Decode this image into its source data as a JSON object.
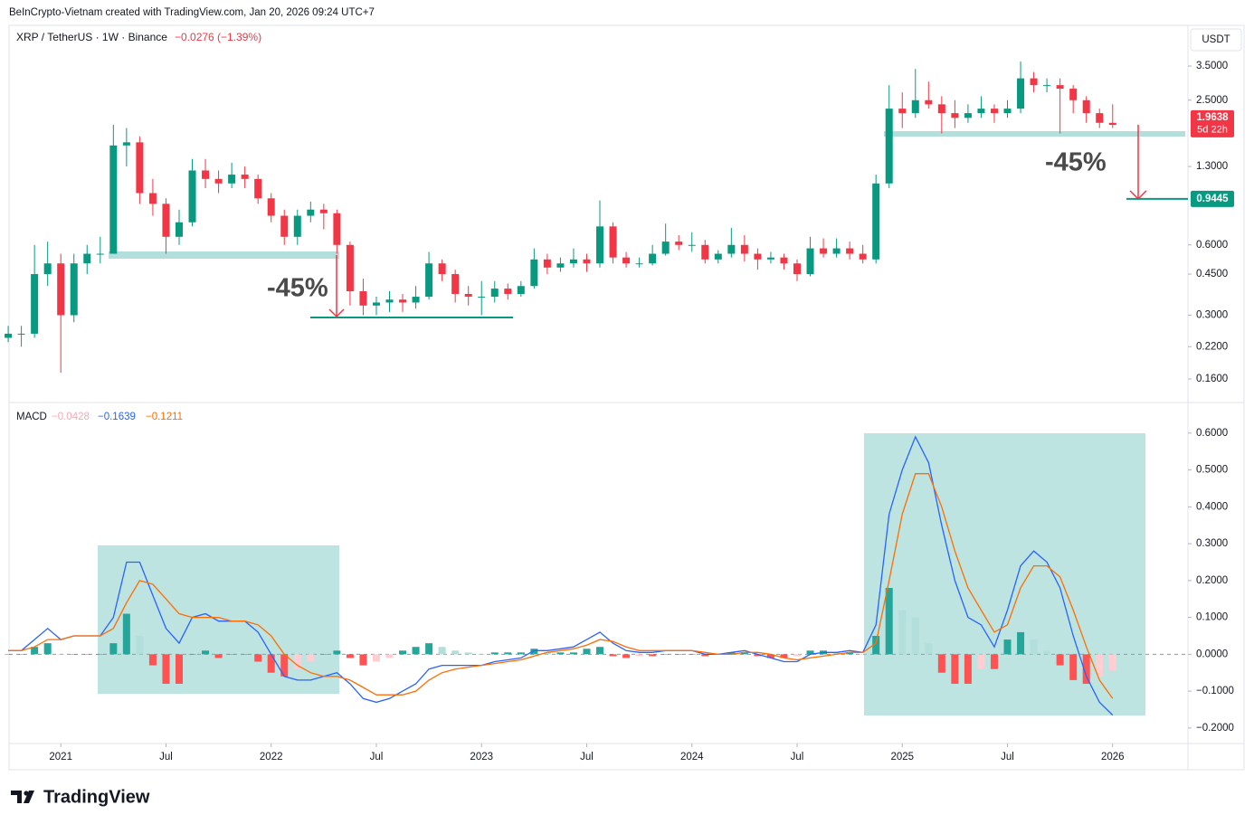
{
  "header": "BeInCrypto-Vietnam created with TradingView.com, Jan 20, 2026 09:24 UTC+7",
  "logo": "TradingView",
  "chart_data": [
    {
      "type": "candlestick",
      "title": "XRP / TetherUS · 1W · Binance",
      "change": "−0.0276 (−1.39%)",
      "currency": "USDT",
      "log_scale": true,
      "up_color": "#089981",
      "down_color": "#f23645",
      "xlim": [
        2020.754,
        2026.358
      ],
      "xticks": [
        2021,
        {
          "value": 2021.5,
          "label": "Jul"
        },
        2022,
        {
          "value": 2022.5,
          "label": "Jul"
        },
        2023,
        {
          "value": 2023.5,
          "label": "Jul"
        },
        2024,
        {
          "value": 2024.5,
          "label": "Jul"
        },
        2025,
        {
          "value": 2025.5,
          "label": "Jul"
        },
        2026
      ],
      "ylim": [
        0.128,
        5.23
      ],
      "yticks": [
        {
          "value": 3.5,
          "label": "3.5000"
        },
        {
          "value": 2.5,
          "label": "2.5000"
        },
        {
          "value": 1.3,
          "label": "1.3000"
        },
        {
          "value": 0.6,
          "label": "0.6000"
        },
        {
          "value": 0.45,
          "label": "0.4500"
        },
        {
          "value": 0.3,
          "label": "0.3000"
        },
        {
          "value": 0.22,
          "label": "0.2200"
        },
        {
          "value": 0.16,
          "label": "0.1600"
        }
      ],
      "last_price": 1.9638,
      "countdown": "5d 22h",
      "target_price": 0.9445,
      "annotations": [
        "-45%",
        "-45%"
      ],
      "x": [
        2020.75,
        2020.8125,
        2020.875,
        2020.9375,
        2021,
        2021.0625,
        2021.125,
        2021.1875,
        2021.25,
        2021.3125,
        2021.375,
        2021.4375,
        2021.5,
        2021.5625,
        2021.625,
        2021.6875,
        2021.75,
        2021.8125,
        2021.875,
        2021.9375,
        2022,
        2022.0625,
        2022.125,
        2022.1875,
        2022.25,
        2022.3125,
        2022.375,
        2022.4375,
        2022.5,
        2022.5625,
        2022.625,
        2022.6875,
        2022.75,
        2022.8125,
        2022.875,
        2022.9375,
        2023,
        2023.0625,
        2023.125,
        2023.1875,
        2023.25,
        2023.3125,
        2023.375,
        2023.4375,
        2023.5,
        2023.5625,
        2023.625,
        2023.6875,
        2023.75,
        2023.8125,
        2023.875,
        2023.9375,
        2024,
        2024.0625,
        2024.125,
        2024.1875,
        2024.25,
        2024.3125,
        2024.375,
        2024.4375,
        2024.5,
        2024.5625,
        2024.625,
        2024.6875,
        2024.75,
        2024.8125,
        2024.875,
        2024.9375,
        2025,
        2025.0625,
        2025.125,
        2025.1875,
        2025.25,
        2025.3125,
        2025.375,
        2025.4375,
        2025.5,
        2025.5625,
        2025.625,
        2025.6875,
        2025.75,
        2025.8125,
        2025.875,
        2025.9375,
        2026
      ],
      "open": [
        0.24,
        0.25,
        0.25,
        0.45,
        0.5,
        0.3,
        0.5,
        0.55,
        0.55,
        1.6,
        1.65,
        1.0,
        0.9,
        0.65,
        0.75,
        1.25,
        1.15,
        1.1,
        1.2,
        1.15,
        0.95,
        0.8,
        0.65,
        0.8,
        0.85,
        0.82,
        0.6,
        0.38,
        0.33,
        0.34,
        0.35,
        0.34,
        0.36,
        0.5,
        0.45,
        0.37,
        0.36,
        0.36,
        0.39,
        0.37,
        0.4,
        0.52,
        0.48,
        0.5,
        0.52,
        0.5,
        0.72,
        0.53,
        0.5,
        0.5,
        0.55,
        0.62,
        0.6,
        0.6,
        0.52,
        0.55,
        0.6,
        0.55,
        0.52,
        0.53,
        0.5,
        0.45,
        0.58,
        0.55,
        0.58,
        0.55,
        0.52,
        1.1,
        2.3,
        2.2,
        2.5,
        2.4,
        2.2,
        2.1,
        2.2,
        2.3,
        2.2,
        2.3,
        3.1,
        2.9,
        2.9,
        2.8,
        2.5,
        2.2,
        2.0
      ],
      "high": [
        0.27,
        0.27,
        0.6,
        0.62,
        0.55,
        0.55,
        0.6,
        0.65,
        1.96,
        1.9,
        1.75,
        1.15,
        0.95,
        0.85,
        1.4,
        1.4,
        1.25,
        1.35,
        1.3,
        1.2,
        1.0,
        0.85,
        0.85,
        0.92,
        0.9,
        0.85,
        0.62,
        0.43,
        0.36,
        0.38,
        0.37,
        0.4,
        0.56,
        0.52,
        0.47,
        0.4,
        0.42,
        0.42,
        0.41,
        0.42,
        0.58,
        0.55,
        0.53,
        0.58,
        0.55,
        0.93,
        0.75,
        0.56,
        0.53,
        0.6,
        0.74,
        0.66,
        0.68,
        0.63,
        0.57,
        0.71,
        0.66,
        0.58,
        0.56,
        0.55,
        0.52,
        0.65,
        0.64,
        0.64,
        0.62,
        0.6,
        1.2,
        2.9,
        2.7,
        3.4,
        3.0,
        2.6,
        2.5,
        2.4,
        2.6,
        2.4,
        2.5,
        3.66,
        3.3,
        3.1,
        3.1,
        2.9,
        2.6,
        2.3,
        2.4
      ],
      "low": [
        0.23,
        0.22,
        0.24,
        0.4,
        0.17,
        0.28,
        0.45,
        0.5,
        0.55,
        1.3,
        0.9,
        0.8,
        0.55,
        0.6,
        0.72,
        1.05,
        1.0,
        1.05,
        1.05,
        0.9,
        0.75,
        0.6,
        0.6,
        0.75,
        0.7,
        0.55,
        0.33,
        0.3,
        0.3,
        0.31,
        0.31,
        0.32,
        0.35,
        0.42,
        0.34,
        0.33,
        0.3,
        0.34,
        0.35,
        0.36,
        0.39,
        0.45,
        0.46,
        0.48,
        0.46,
        0.48,
        0.5,
        0.48,
        0.48,
        0.49,
        0.54,
        0.57,
        0.56,
        0.5,
        0.5,
        0.53,
        0.51,
        0.47,
        0.5,
        0.47,
        0.42,
        0.44,
        0.53,
        0.53,
        0.52,
        0.5,
        0.5,
        1.05,
        1.9,
        2.1,
        2.3,
        1.8,
        1.9,
        2.0,
        2.1,
        2.0,
        2.1,
        2.2,
        2.7,
        2.7,
        1.8,
        2.2,
        2.0,
        1.9,
        1.9
      ],
      "close": [
        0.25,
        0.25,
        0.45,
        0.5,
        0.3,
        0.5,
        0.55,
        0.55,
        1.6,
        1.65,
        1.0,
        0.9,
        0.65,
        0.75,
        1.25,
        1.15,
        1.1,
        1.2,
        1.15,
        0.95,
        0.8,
        0.65,
        0.8,
        0.85,
        0.82,
        0.6,
        0.38,
        0.33,
        0.34,
        0.35,
        0.34,
        0.36,
        0.5,
        0.45,
        0.37,
        0.36,
        0.36,
        0.39,
        0.37,
        0.4,
        0.52,
        0.48,
        0.5,
        0.52,
        0.5,
        0.72,
        0.53,
        0.5,
        0.5,
        0.55,
        0.62,
        0.6,
        0.6,
        0.52,
        0.55,
        0.6,
        0.55,
        0.52,
        0.53,
        0.5,
        0.45,
        0.58,
        0.55,
        0.58,
        0.55,
        0.52,
        1.1,
        2.3,
        2.2,
        2.5,
        2.4,
        2.2,
        2.1,
        2.2,
        2.3,
        2.2,
        2.3,
        3.1,
        2.9,
        2.9,
        2.8,
        2.5,
        2.2,
        2.0,
        1.96
      ]
    },
    {
      "type": "macd",
      "title": "MACD",
      "ylim": [
        -0.242,
        0.683
      ],
      "yticks": [
        {
          "value": 0.6,
          "label": "0.6000"
        },
        {
          "value": 0.5,
          "label": "0.5000"
        },
        {
          "value": 0.4,
          "label": "0.4000"
        },
        {
          "value": 0.3,
          "label": "0.3000"
        },
        {
          "value": 0.2,
          "label": "0.2000"
        },
        {
          "value": 0.1,
          "label": "0.1000"
        },
        {
          "value": 0,
          "label": "0.0000"
        },
        {
          "value": -0.1,
          "label": "−0.1000"
        },
        {
          "value": -0.2,
          "label": "−0.2000"
        }
      ],
      "series": [
        {
          "color": "#f7a9b5",
          "colors": [
            "#26a69a",
            "#b2dfdb",
            "#ffcdd2",
            "#ff5252"
          ],
          "legend_value": "−0.0428",
          "values": [
            0,
            0,
            0.02,
            0.03,
            0,
            0,
            0,
            0,
            0.03,
            0.11,
            0.05,
            -0.03,
            -0.08,
            -0.08,
            0,
            0.01,
            -0.01,
            0,
            0,
            -0.02,
            -0.05,
            -0.06,
            -0.04,
            -0.02,
            0,
            0.01,
            -0.01,
            -0.03,
            -0.02,
            -0.01,
            0.01,
            0.02,
            0.03,
            0.02,
            0.01,
            0.005,
            0,
            0.005,
            0.005,
            0.005,
            0.015,
            0.005,
            0.005,
            0.005,
            0.015,
            0.02,
            -0.005,
            -0.01,
            -0.005,
            -0.005,
            0,
            0,
            0,
            -0.005,
            0,
            0.005,
            0.005,
            -0.005,
            -0.01,
            -0.01,
            -0.005,
            0.01,
            0.01,
            0.005,
            0.005,
            0,
            0.05,
            0.18,
            0.12,
            0.1,
            0.03,
            -0.05,
            -0.08,
            -0.08,
            -0.04,
            -0.04,
            0.04,
            0.06,
            0.04,
            0.01,
            -0.03,
            -0.07,
            -0.08,
            -0.06,
            -0.045
          ]
        },
        {
          "color": "#2962ff",
          "legend_value": "−0.1639",
          "values": [
            0.01,
            0.01,
            0.04,
            0.07,
            0.04,
            0.05,
            0.05,
            0.05,
            0.1,
            0.25,
            0.25,
            0.16,
            0.07,
            0.03,
            0.1,
            0.11,
            0.09,
            0.09,
            0.09,
            0.06,
            0.0,
            -0.06,
            -0.07,
            -0.07,
            -0.06,
            -0.05,
            -0.08,
            -0.12,
            -0.13,
            -0.12,
            -0.1,
            -0.08,
            -0.04,
            -0.03,
            -0.03,
            -0.03,
            -0.03,
            -0.02,
            -0.015,
            -0.01,
            0.01,
            0.01,
            0.015,
            0.02,
            0.04,
            0.06,
            0.03,
            0.01,
            0.005,
            0.005,
            0.01,
            0.01,
            0.01,
            0.0,
            0.0,
            0.005,
            0.01,
            0.0,
            -0.01,
            -0.02,
            -0.02,
            0.0,
            0.005,
            0.005,
            0.01,
            0.005,
            0.08,
            0.38,
            0.5,
            0.59,
            0.52,
            0.35,
            0.2,
            0.1,
            0.08,
            0.02,
            0.12,
            0.24,
            0.28,
            0.25,
            0.18,
            0.05,
            -0.06,
            -0.13,
            -0.165
          ]
        },
        {
          "color": "#ff6d00",
          "legend_value": "−0.1211",
          "values": [
            0.01,
            0.01,
            0.02,
            0.04,
            0.04,
            0.05,
            0.05,
            0.05,
            0.07,
            0.14,
            0.2,
            0.19,
            0.15,
            0.11,
            0.1,
            0.1,
            0.1,
            0.09,
            0.09,
            0.08,
            0.05,
            0.0,
            -0.03,
            -0.05,
            -0.06,
            -0.06,
            -0.07,
            -0.09,
            -0.11,
            -0.11,
            -0.11,
            -0.1,
            -0.07,
            -0.05,
            -0.04,
            -0.035,
            -0.03,
            -0.025,
            -0.02,
            -0.015,
            -0.005,
            0.005,
            0.01,
            0.015,
            0.025,
            0.04,
            0.035,
            0.02,
            0.01,
            0.01,
            0.01,
            0.01,
            0.01,
            0.005,
            0.0,
            0.0,
            0.005,
            0.005,
            0.0,
            -0.01,
            -0.015,
            -0.01,
            -0.005,
            0.0,
            0.005,
            0.005,
            0.03,
            0.2,
            0.38,
            0.49,
            0.49,
            0.4,
            0.28,
            0.18,
            0.12,
            0.06,
            0.08,
            0.18,
            0.24,
            0.24,
            0.21,
            0.12,
            0.02,
            -0.07,
            -0.12
          ]
        }
      ]
    }
  ]
}
